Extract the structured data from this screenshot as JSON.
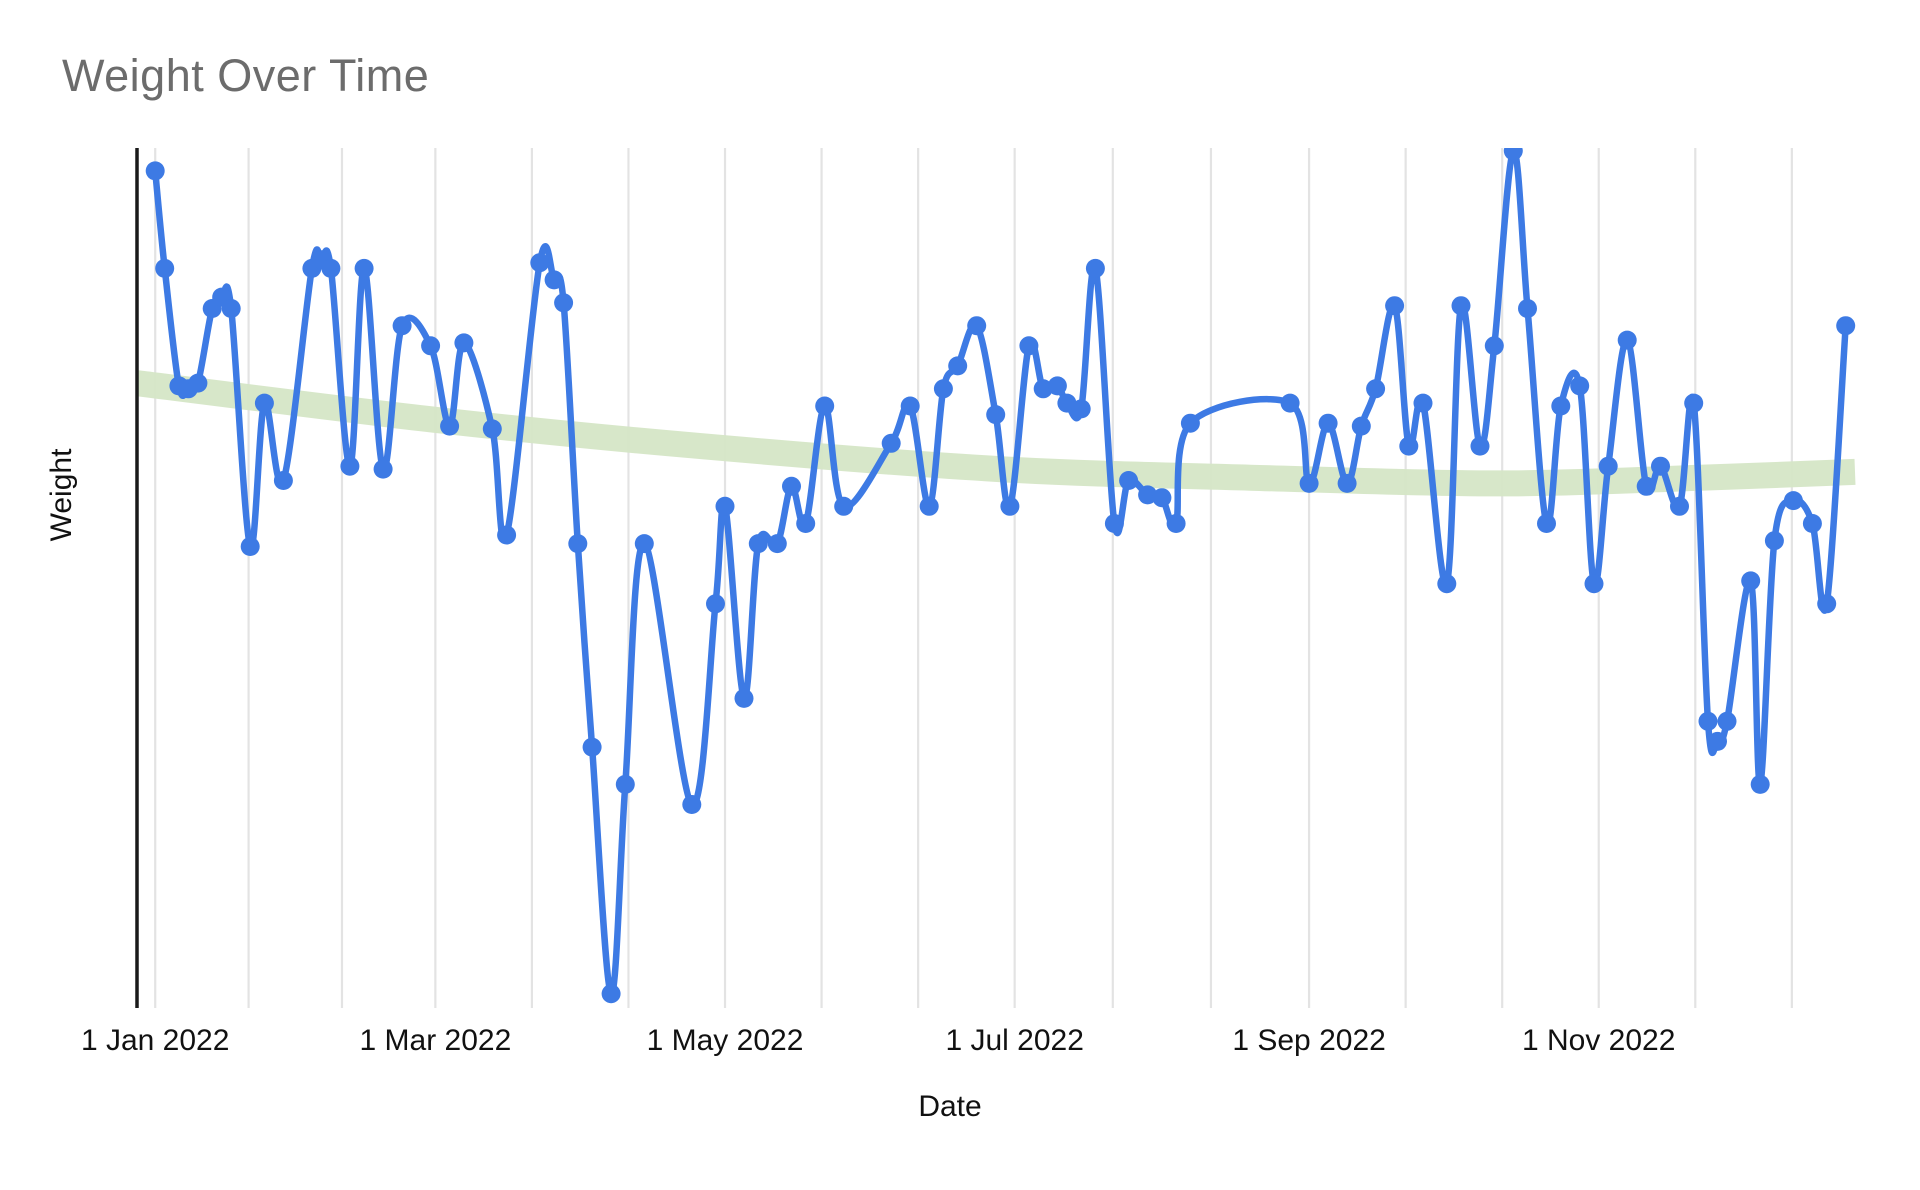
{
  "title": "Weight Over Time",
  "x_axis": {
    "title": "Date"
  },
  "y_axis": {
    "title": "Weight",
    "tick_labels": []
  },
  "colors": {
    "series_blue": "#3d7ae4",
    "trend_green": "#d5e6c6",
    "gridline": "#e3e3e3",
    "axis_line": "#1a1a1a",
    "title_gray": "#6c6c6c",
    "label_black": "#111111"
  },
  "chart_data": {
    "type": "line",
    "title": "Weight Over Time",
    "xlabel": "Date",
    "ylabel": "Weight",
    "legend": "none",
    "grid": "vertical-only",
    "x_domain": [
      "2022-01-01",
      "2023-01-01"
    ],
    "ylim": [
      170,
      200
    ],
    "y_axis_labeled": false,
    "x_ticks": [
      {
        "label": "1 Jan 2022",
        "date": "2022-01-01"
      },
      {
        "label": "1 Mar 2022",
        "date": "2022-03-01"
      },
      {
        "label": "1 May 2022",
        "date": "2022-05-01"
      },
      {
        "label": "1 Jul 2022",
        "date": "2022-07-01"
      },
      {
        "label": "1 Sep 2022",
        "date": "2022-09-01"
      },
      {
        "label": "1 Nov 2022",
        "date": "2022-11-01"
      }
    ],
    "minor_gridlines_per_interval": 2,
    "series": [
      {
        "name": "Weight",
        "points": [
          {
            "date": "2022-01-01",
            "value": 199.2
          },
          {
            "date": "2022-01-03",
            "value": 195.8
          },
          {
            "date": "2022-01-06",
            "value": 191.7
          },
          {
            "date": "2022-01-08",
            "value": 191.6
          },
          {
            "date": "2022-01-10",
            "value": 191.8
          },
          {
            "date": "2022-01-13",
            "value": 194.4
          },
          {
            "date": "2022-01-15",
            "value": 194.8
          },
          {
            "date": "2022-01-17",
            "value": 194.4
          },
          {
            "date": "2022-01-21",
            "value": 186.1
          },
          {
            "date": "2022-01-24",
            "value": 191.1
          },
          {
            "date": "2022-01-28",
            "value": 188.4
          },
          {
            "date": "2022-02-03",
            "value": 195.8
          },
          {
            "date": "2022-02-05",
            "value": 196.1
          },
          {
            "date": "2022-02-07",
            "value": 195.8
          },
          {
            "date": "2022-02-11",
            "value": 188.9
          },
          {
            "date": "2022-02-14",
            "value": 195.8
          },
          {
            "date": "2022-02-18",
            "value": 188.8
          },
          {
            "date": "2022-02-22",
            "value": 193.8
          },
          {
            "date": "2022-02-28",
            "value": 193.1
          },
          {
            "date": "2022-03-04",
            "value": 190.3
          },
          {
            "date": "2022-03-07",
            "value": 193.2
          },
          {
            "date": "2022-03-13",
            "value": 190.2
          },
          {
            "date": "2022-03-16",
            "value": 186.5
          },
          {
            "date": "2022-03-23",
            "value": 196.0
          },
          {
            "date": "2022-03-26",
            "value": 195.4
          },
          {
            "date": "2022-03-28",
            "value": 194.6
          },
          {
            "date": "2022-03-31",
            "value": 186.2
          },
          {
            "date": "2022-04-03",
            "value": 179.1
          },
          {
            "date": "2022-04-07",
            "value": 170.5
          },
          {
            "date": "2022-04-10",
            "value": 177.8
          },
          {
            "date": "2022-04-14",
            "value": 186.2
          },
          {
            "date": "2022-04-24",
            "value": 177.1
          },
          {
            "date": "2022-04-29",
            "value": 184.1
          },
          {
            "date": "2022-05-01",
            "value": 187.5
          },
          {
            "date": "2022-05-05",
            "value": 180.8
          },
          {
            "date": "2022-05-08",
            "value": 186.2
          },
          {
            "date": "2022-05-12",
            "value": 186.2
          },
          {
            "date": "2022-05-15",
            "value": 188.2
          },
          {
            "date": "2022-05-18",
            "value": 186.9
          },
          {
            "date": "2022-05-22",
            "value": 191.0
          },
          {
            "date": "2022-05-26",
            "value": 187.5
          },
          {
            "date": "2022-06-05",
            "value": 189.7
          },
          {
            "date": "2022-06-09",
            "value": 191.0
          },
          {
            "date": "2022-06-13",
            "value": 187.5
          },
          {
            "date": "2022-06-16",
            "value": 191.6
          },
          {
            "date": "2022-06-19",
            "value": 192.4
          },
          {
            "date": "2022-06-23",
            "value": 193.8
          },
          {
            "date": "2022-06-27",
            "value": 190.7
          },
          {
            "date": "2022-06-30",
            "value": 187.5
          },
          {
            "date": "2022-07-04",
            "value": 193.1
          },
          {
            "date": "2022-07-07",
            "value": 191.6
          },
          {
            "date": "2022-07-10",
            "value": 191.7
          },
          {
            "date": "2022-07-12",
            "value": 191.1
          },
          {
            "date": "2022-07-15",
            "value": 190.9
          },
          {
            "date": "2022-07-18",
            "value": 195.8
          },
          {
            "date": "2022-07-22",
            "value": 186.9
          },
          {
            "date": "2022-07-25",
            "value": 188.4
          },
          {
            "date": "2022-07-29",
            "value": 187.9
          },
          {
            "date": "2022-08-01",
            "value": 187.8
          },
          {
            "date": "2022-08-04",
            "value": 186.9
          },
          {
            "date": "2022-08-07",
            "value": 190.4
          },
          {
            "date": "2022-08-28",
            "value": 191.1
          },
          {
            "date": "2022-09-01",
            "value": 188.3
          },
          {
            "date": "2022-09-05",
            "value": 190.4
          },
          {
            "date": "2022-09-09",
            "value": 188.3
          },
          {
            "date": "2022-09-12",
            "value": 190.3
          },
          {
            "date": "2022-09-15",
            "value": 191.6
          },
          {
            "date": "2022-09-19",
            "value": 194.5
          },
          {
            "date": "2022-09-22",
            "value": 189.6
          },
          {
            "date": "2022-09-25",
            "value": 191.1
          },
          {
            "date": "2022-09-30",
            "value": 184.8
          },
          {
            "date": "2022-10-03",
            "value": 194.5
          },
          {
            "date": "2022-10-07",
            "value": 189.6
          },
          {
            "date": "2022-10-10",
            "value": 193.1
          },
          {
            "date": "2022-10-14",
            "value": 199.9
          },
          {
            "date": "2022-10-17",
            "value": 194.4
          },
          {
            "date": "2022-10-21",
            "value": 186.9
          },
          {
            "date": "2022-10-24",
            "value": 191.0
          },
          {
            "date": "2022-10-28",
            "value": 191.7
          },
          {
            "date": "2022-10-31",
            "value": 184.8
          },
          {
            "date": "2022-11-03",
            "value": 188.9
          },
          {
            "date": "2022-11-07",
            "value": 193.3
          },
          {
            "date": "2022-11-11",
            "value": 188.2
          },
          {
            "date": "2022-11-14",
            "value": 188.9
          },
          {
            "date": "2022-11-18",
            "value": 187.5
          },
          {
            "date": "2022-11-21",
            "value": 191.1
          },
          {
            "date": "2022-11-24",
            "value": 180.0
          },
          {
            "date": "2022-11-26",
            "value": 179.3
          },
          {
            "date": "2022-11-28",
            "value": 180.0
          },
          {
            "date": "2022-12-03",
            "value": 184.9
          },
          {
            "date": "2022-12-05",
            "value": 177.8
          },
          {
            "date": "2022-12-08",
            "value": 186.3
          },
          {
            "date": "2022-12-12",
            "value": 187.7
          },
          {
            "date": "2022-12-16",
            "value": 186.9
          },
          {
            "date": "2022-12-19",
            "value": 184.1
          },
          {
            "date": "2022-12-23",
            "value": 193.8
          }
        ]
      }
    ],
    "trendline": {
      "style": "thick smoothed band",
      "points": [
        {
          "t": 0.0,
          "value": 191.8
        },
        {
          "t": 0.176,
          "value": 190.5
        },
        {
          "t": 0.328,
          "value": 189.6
        },
        {
          "t": 0.502,
          "value": 188.8
        },
        {
          "t": 0.648,
          "value": 188.5
        },
        {
          "t": 0.793,
          "value": 188.3
        },
        {
          "t": 0.91,
          "value": 188.5
        },
        {
          "t": 1.0,
          "value": 188.7
        }
      ]
    }
  }
}
